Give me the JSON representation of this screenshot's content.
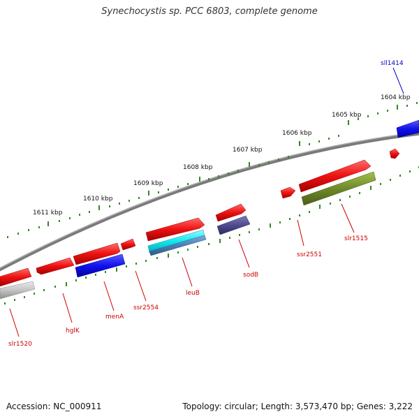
{
  "title": "Synechocystis sp. PCC 6803, complete genome",
  "footer": {
    "accession": "Accession: NC_000911",
    "summary": "Topology: circular; Length: 3,573,470 bp; Genes: 3,222"
  },
  "colors": {
    "backbone": "#8a8a8a",
    "tick": "#2e8b1e",
    "label_red": "#cc0000",
    "label_blue": "#0000cc",
    "gene_red": "#ee1111",
    "gene_blue": "#1111ee",
    "gene_cyan": "#11e8ee",
    "gene_steel": "#4a7fb5",
    "gene_slate": "#4e4a8e",
    "gene_olive": "#6e8a2a",
    "gene_gray": "#b8b8b8"
  },
  "scale_labels": [
    "1604 kbp",
    "1605 kbp",
    "1606 kbp",
    "1607 kbp",
    "1608 kbp",
    "1609 kbp",
    "1610 kbp",
    "1611 kbp"
  ],
  "gene_labels": [
    "sll1414",
    "ssr2551",
    "slr1515",
    "sodB",
    "leuB",
    "ssr2554",
    "menA",
    "hglK",
    "slr1520"
  ]
}
